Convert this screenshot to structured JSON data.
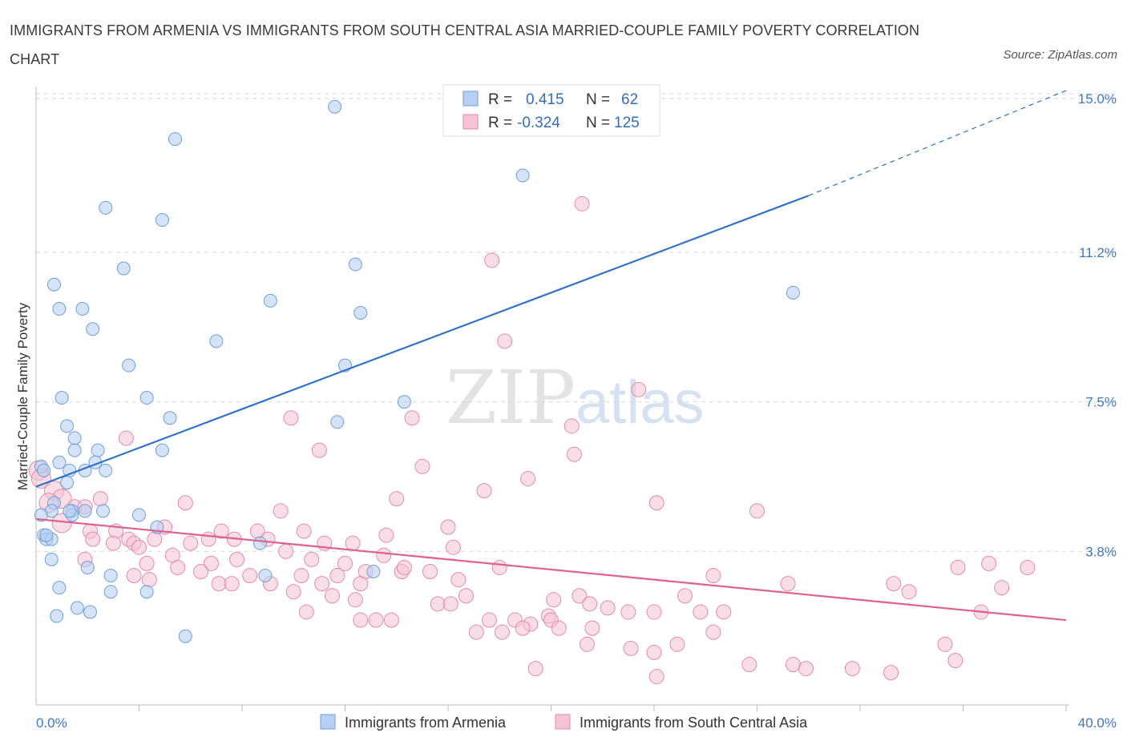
{
  "title": "IMMIGRANTS FROM ARMENIA VS IMMIGRANTS FROM SOUTH CENTRAL ASIA MARRIED-COUPLE FAMILY POVERTY CORRELATION CHART",
  "source": "Source: ZipAtlas.com",
  "colors": {
    "armenia_fill": "#b8d0f2",
    "armenia_stroke": "#6f9fd8",
    "armenia_line": "#2d6fcf",
    "sca_fill": "#f6c3d3",
    "sca_stroke": "#e48aa8",
    "sca_line": "#e0608e",
    "grid": "#d8d8d8",
    "tick_label": "#3f76c9"
  },
  "legend": {
    "r_label": "R =",
    "n_label": "N =",
    "armenia": {
      "r": "0.415",
      "n": "62"
    },
    "sca": {
      "r": "-0.324",
      "n": "125"
    }
  },
  "chart_data": {
    "type": "scatter",
    "title": "IMMIGRANTS FROM ARMENIA VS IMMIGRANTS FROM SOUTH CENTRAL ASIA MARRIED-COUPLE FAMILY POVERTY CORRELATION CHART",
    "xlabel": "",
    "ylabel": "Married-Couple Family Poverty",
    "xlim": [
      0,
      40
    ],
    "ylim": [
      0,
      15.3
    ],
    "x_tick_labels": [
      "0.0%",
      "40.0%"
    ],
    "y_ticks": [
      3.8,
      7.5,
      11.2,
      15.0
    ],
    "y_tick_labels": [
      "3.8%",
      "7.5%",
      "11.2%",
      "15.0%"
    ],
    "grid": true,
    "legend_position": "top-center",
    "series": [
      {
        "name": "Immigrants from Armenia",
        "r": 0.415,
        "n": 62,
        "trend": {
          "x": [
            0,
            30
          ],
          "y": [
            5.4,
            12.6
          ],
          "dashed_extension_to": [
            40,
            15.2
          ]
        },
        "points": [
          [
            11.6,
            14.8
          ],
          [
            5.4,
            14.0
          ],
          [
            2.7,
            12.3
          ],
          [
            4.9,
            12.0
          ],
          [
            18.9,
            13.1
          ],
          [
            3.4,
            10.8
          ],
          [
            12.4,
            10.9
          ],
          [
            0.7,
            10.4
          ],
          [
            0.9,
            9.8
          ],
          [
            1.8,
            9.8
          ],
          [
            9.1,
            10.0
          ],
          [
            12.6,
            9.7
          ],
          [
            29.4,
            10.2
          ],
          [
            2.2,
            9.3
          ],
          [
            7.0,
            9.0
          ],
          [
            3.6,
            8.4
          ],
          [
            12.0,
            8.4
          ],
          [
            1.0,
            7.6
          ],
          [
            4.3,
            7.6
          ],
          [
            14.3,
            7.5
          ],
          [
            5.2,
            7.1
          ],
          [
            11.7,
            7.0
          ],
          [
            1.2,
            6.9
          ],
          [
            1.5,
            6.6
          ],
          [
            1.5,
            6.3
          ],
          [
            2.4,
            6.3
          ],
          [
            4.9,
            6.3
          ],
          [
            0.9,
            6.0
          ],
          [
            2.3,
            6.0
          ],
          [
            0.2,
            5.9
          ],
          [
            0.3,
            5.8
          ],
          [
            1.3,
            5.8
          ],
          [
            1.9,
            5.8
          ],
          [
            2.7,
            5.8
          ],
          [
            1.2,
            5.5
          ],
          [
            0.7,
            5.0
          ],
          [
            0.6,
            4.8
          ],
          [
            1.4,
            4.8
          ],
          [
            1.9,
            4.8
          ],
          [
            2.6,
            4.8
          ],
          [
            4.0,
            4.7
          ],
          [
            0.2,
            4.7
          ],
          [
            1.4,
            4.7
          ],
          [
            0.3,
            4.2
          ],
          [
            0.4,
            4.1
          ],
          [
            0.6,
            4.1
          ],
          [
            4.7,
            4.4
          ],
          [
            8.7,
            4.0
          ],
          [
            0.6,
            3.6
          ],
          [
            2.0,
            3.4
          ],
          [
            2.9,
            3.2
          ],
          [
            8.9,
            3.2
          ],
          [
            13.1,
            3.3
          ],
          [
            0.9,
            2.9
          ],
          [
            2.9,
            2.8
          ],
          [
            4.3,
            2.8
          ],
          [
            1.6,
            2.4
          ],
          [
            2.1,
            2.3
          ],
          [
            0.8,
            2.2
          ],
          [
            5.8,
            1.7
          ],
          [
            1.3,
            4.8
          ],
          [
            0.4,
            4.2
          ]
        ]
      },
      {
        "name": "Immigrants from South Central Asia",
        "r": -0.324,
        "n": 125,
        "trend": {
          "x": [
            0,
            40
          ],
          "y": [
            4.6,
            2.1
          ]
        },
        "points": [
          [
            21.2,
            12.4
          ],
          [
            17.7,
            11.0
          ],
          [
            18.2,
            9.0
          ],
          [
            23.4,
            7.8
          ],
          [
            9.9,
            7.1
          ],
          [
            14.6,
            7.1
          ],
          [
            20.8,
            6.9
          ],
          [
            3.5,
            6.6
          ],
          [
            11.0,
            6.3
          ],
          [
            20.9,
            6.2
          ],
          [
            15.0,
            5.9
          ],
          [
            19.1,
            5.6
          ],
          [
            17.4,
            5.3
          ],
          [
            0.1,
            5.8
          ],
          [
            0.2,
            5.6
          ],
          [
            0.7,
            5.3
          ],
          [
            1.0,
            5.1
          ],
          [
            2.5,
            5.1
          ],
          [
            14.0,
            5.1
          ],
          [
            5.8,
            5.0
          ],
          [
            24.1,
            5.0
          ],
          [
            0.5,
            5.0
          ],
          [
            1.5,
            4.9
          ],
          [
            1.9,
            4.9
          ],
          [
            9.5,
            4.8
          ],
          [
            28.0,
            4.8
          ],
          [
            1.0,
            4.5
          ],
          [
            2.1,
            4.3
          ],
          [
            3.1,
            4.3
          ],
          [
            5.0,
            4.4
          ],
          [
            7.2,
            4.3
          ],
          [
            8.6,
            4.3
          ],
          [
            10.4,
            4.3
          ],
          [
            16.0,
            4.4
          ],
          [
            13.6,
            4.2
          ],
          [
            2.2,
            4.1
          ],
          [
            3.6,
            4.1
          ],
          [
            4.6,
            4.1
          ],
          [
            6.0,
            4.0
          ],
          [
            6.7,
            4.1
          ],
          [
            7.7,
            4.1
          ],
          [
            9.0,
            4.1
          ],
          [
            11.2,
            4.0
          ],
          [
            12.3,
            4.0
          ],
          [
            16.2,
            3.9
          ],
          [
            3.0,
            4.0
          ],
          [
            3.8,
            4.0
          ],
          [
            4.0,
            3.9
          ],
          [
            5.3,
            3.7
          ],
          [
            9.7,
            3.8
          ],
          [
            13.5,
            3.7
          ],
          [
            1.9,
            3.6
          ],
          [
            4.3,
            3.5
          ],
          [
            5.5,
            3.4
          ],
          [
            6.8,
            3.5
          ],
          [
            7.8,
            3.6
          ],
          [
            10.7,
            3.6
          ],
          [
            12.0,
            3.5
          ],
          [
            14.2,
            3.3
          ],
          [
            18.0,
            3.4
          ],
          [
            3.8,
            3.2
          ],
          [
            6.4,
            3.3
          ],
          [
            8.3,
            3.2
          ],
          [
            10.3,
            3.2
          ],
          [
            11.7,
            3.2
          ],
          [
            12.8,
            3.3
          ],
          [
            14.3,
            3.4
          ],
          [
            15.3,
            3.3
          ],
          [
            26.3,
            3.2
          ],
          [
            4.4,
            3.1
          ],
          [
            7.1,
            3.0
          ],
          [
            7.6,
            3.0
          ],
          [
            9.1,
            3.0
          ],
          [
            11.1,
            3.0
          ],
          [
            12.6,
            3.0
          ],
          [
            16.4,
            3.1
          ],
          [
            29.2,
            3.0
          ],
          [
            33.3,
            3.0
          ],
          [
            35.8,
            3.4
          ],
          [
            37.0,
            3.5
          ],
          [
            38.5,
            3.4
          ],
          [
            10.0,
            2.8
          ],
          [
            11.5,
            2.7
          ],
          [
            12.4,
            2.6
          ],
          [
            16.7,
            2.7
          ],
          [
            20.1,
            2.6
          ],
          [
            21.1,
            2.7
          ],
          [
            25.2,
            2.7
          ],
          [
            33.9,
            2.8
          ],
          [
            37.5,
            2.9
          ],
          [
            15.6,
            2.5
          ],
          [
            16.1,
            2.5
          ],
          [
            21.5,
            2.5
          ],
          [
            22.2,
            2.4
          ],
          [
            23.0,
            2.3
          ],
          [
            24.0,
            2.3
          ],
          [
            19.9,
            2.2
          ],
          [
            25.8,
            2.3
          ],
          [
            26.7,
            2.3
          ],
          [
            36.7,
            2.3
          ],
          [
            10.5,
            2.3
          ],
          [
            12.6,
            2.1
          ],
          [
            13.2,
            2.1
          ],
          [
            13.8,
            2.1
          ],
          [
            17.6,
            2.1
          ],
          [
            18.6,
            2.1
          ],
          [
            19.2,
            2.0
          ],
          [
            20.0,
            2.1
          ],
          [
            18.9,
            1.9
          ],
          [
            20.3,
            1.9
          ],
          [
            17.1,
            1.8
          ],
          [
            18.1,
            1.8
          ],
          [
            21.6,
            1.9
          ],
          [
            26.3,
            1.8
          ],
          [
            21.4,
            1.5
          ],
          [
            23.1,
            1.4
          ],
          [
            24.0,
            1.3
          ],
          [
            24.9,
            1.5
          ],
          [
            35.3,
            1.5
          ],
          [
            35.7,
            1.1
          ],
          [
            19.4,
            0.9
          ],
          [
            27.7,
            1.0
          ],
          [
            29.4,
            1.0
          ],
          [
            29.9,
            0.9
          ],
          [
            31.7,
            0.9
          ],
          [
            33.2,
            0.8
          ],
          [
            24.1,
            0.7
          ]
        ]
      }
    ]
  },
  "bottom_legend": {
    "armenia_label": "Immigrants from Armenia",
    "sca_label": "Immigrants from South Central Asia"
  },
  "watermark": "ZIPatlas"
}
